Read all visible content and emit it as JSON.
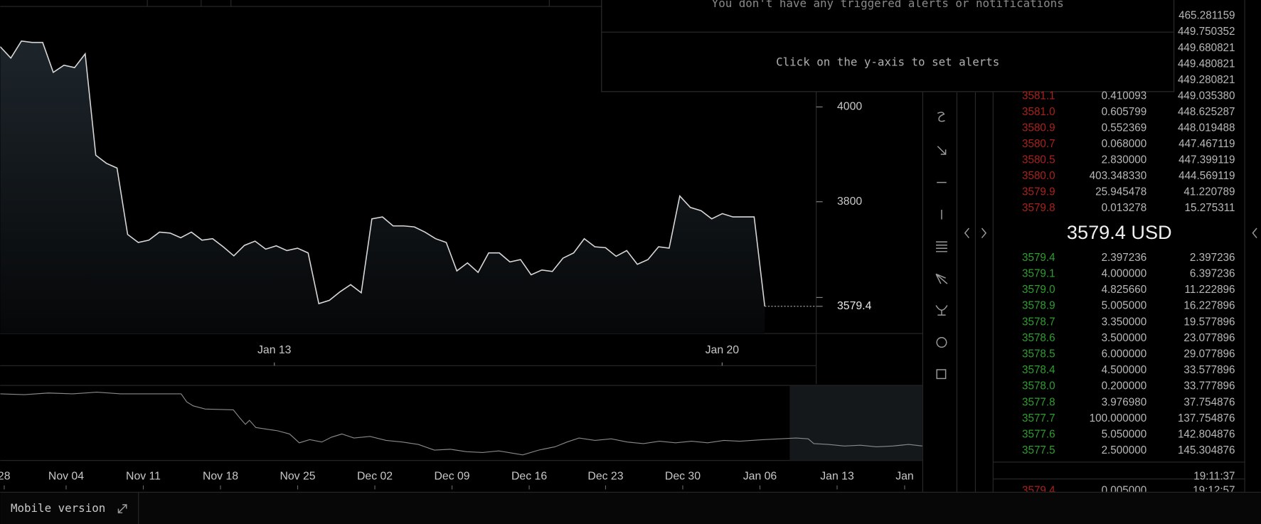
{
  "alerts": {
    "empty_message": "You don't have any triggered alerts or notifications",
    "hint": "Click on the y-axis to set alerts"
  },
  "price_chart": {
    "type": "line",
    "values": [
      4127,
      4103,
      4139,
      4136,
      4136,
      4073,
      4088,
      4083,
      4112,
      3898,
      3881,
      3871,
      3731,
      3714,
      3719,
      3736,
      3734,
      3724,
      3736,
      3719,
      3722,
      3705,
      3686,
      3708,
      3717,
      3700,
      3707,
      3697,
      3702,
      3692,
      3585,
      3592,
      3610,
      3625,
      3608,
      3764,
      3768,
      3749,
      3749,
      3747,
      3736,
      3722,
      3714,
      3654,
      3671,
      3651,
      3692,
      3692,
      3673,
      3678,
      3646,
      3656,
      3653,
      3681,
      3692,
      3722,
      3705,
      3703,
      3685,
      3697,
      3668,
      3678,
      3705,
      3702,
      3812,
      3788,
      3781,
      3764,
      3775,
      3768,
      3768,
      3768,
      3579.4
    ],
    "ylim": [
      3522,
      4212
    ],
    "yticks": [
      4000,
      3800
    ],
    "last_price": 3579.4,
    "x_labels": [
      "Jan 13",
      "Jan 20"
    ]
  },
  "navigator": {
    "x_labels": [
      "28",
      "Nov 04",
      "Nov 11",
      "Nov 18",
      "Nov 25",
      "Dec 02",
      "Dec 09",
      "Dec 16",
      "Dec 23",
      "Dec 30",
      "Jan 06",
      "Jan 13",
      "Jan"
    ]
  },
  "order_book": {
    "top_totals": [
      "465.281159",
      "449.750352",
      "449.680821",
      "449.480821",
      "449.280821"
    ],
    "asks": [
      [
        "3581.1",
        "0.410093",
        "449.035380"
      ],
      [
        "3581.0",
        "0.605799",
        "448.625287"
      ],
      [
        "3580.9",
        "0.552369",
        "448.019488"
      ],
      [
        "3580.7",
        "0.068000",
        "447.467119"
      ],
      [
        "3580.5",
        "2.830000",
        "447.399119"
      ],
      [
        "3580.0",
        "403.348330",
        "444.569119"
      ],
      [
        "3579.9",
        "25.945478",
        "41.220789"
      ],
      [
        "3579.8",
        "0.013278",
        "15.275311"
      ]
    ],
    "mid": "3579.4 USD",
    "bids": [
      [
        "3579.4",
        "2.397236",
        "2.397236"
      ],
      [
        "3579.1",
        "4.000000",
        "6.397236"
      ],
      [
        "3579.0",
        "4.825660",
        "11.222896"
      ],
      [
        "3578.9",
        "5.005000",
        "16.227896"
      ],
      [
        "3578.7",
        "3.350000",
        "19.577896"
      ],
      [
        "3578.6",
        "3.500000",
        "23.077896"
      ],
      [
        "3578.5",
        "6.000000",
        "29.077896"
      ],
      [
        "3578.4",
        "4.500000",
        "33.577896"
      ],
      [
        "3578.0",
        "0.200000",
        "33.777896"
      ],
      [
        "3577.8",
        "3.976980",
        "37.754876"
      ],
      [
        "3577.7",
        "100.000000",
        "137.754876"
      ],
      [
        "3577.6",
        "5.050000",
        "142.804876"
      ],
      [
        "3577.5",
        "2.500000",
        "145.304876"
      ]
    ]
  },
  "trades": {
    "time": "19:11:37",
    "partial_row": [
      "3579.4",
      "0.005000",
      "19:12:57"
    ]
  },
  "footer": {
    "mobile_version": "Mobile version"
  }
}
